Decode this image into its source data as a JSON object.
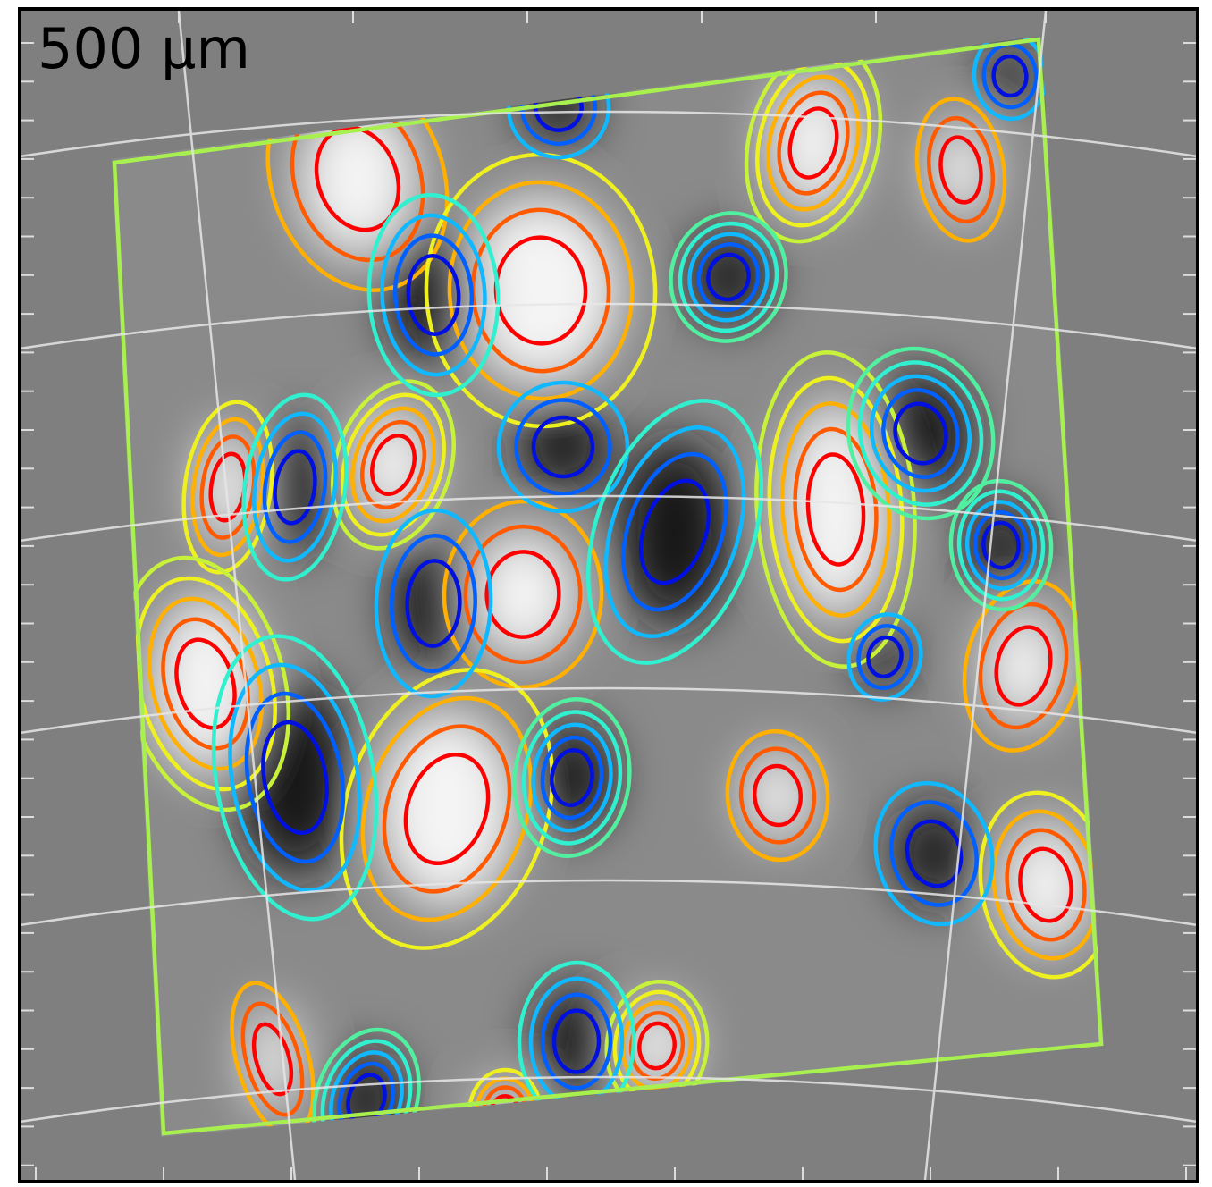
{
  "panel": {
    "label": "500 μm"
  }
}
